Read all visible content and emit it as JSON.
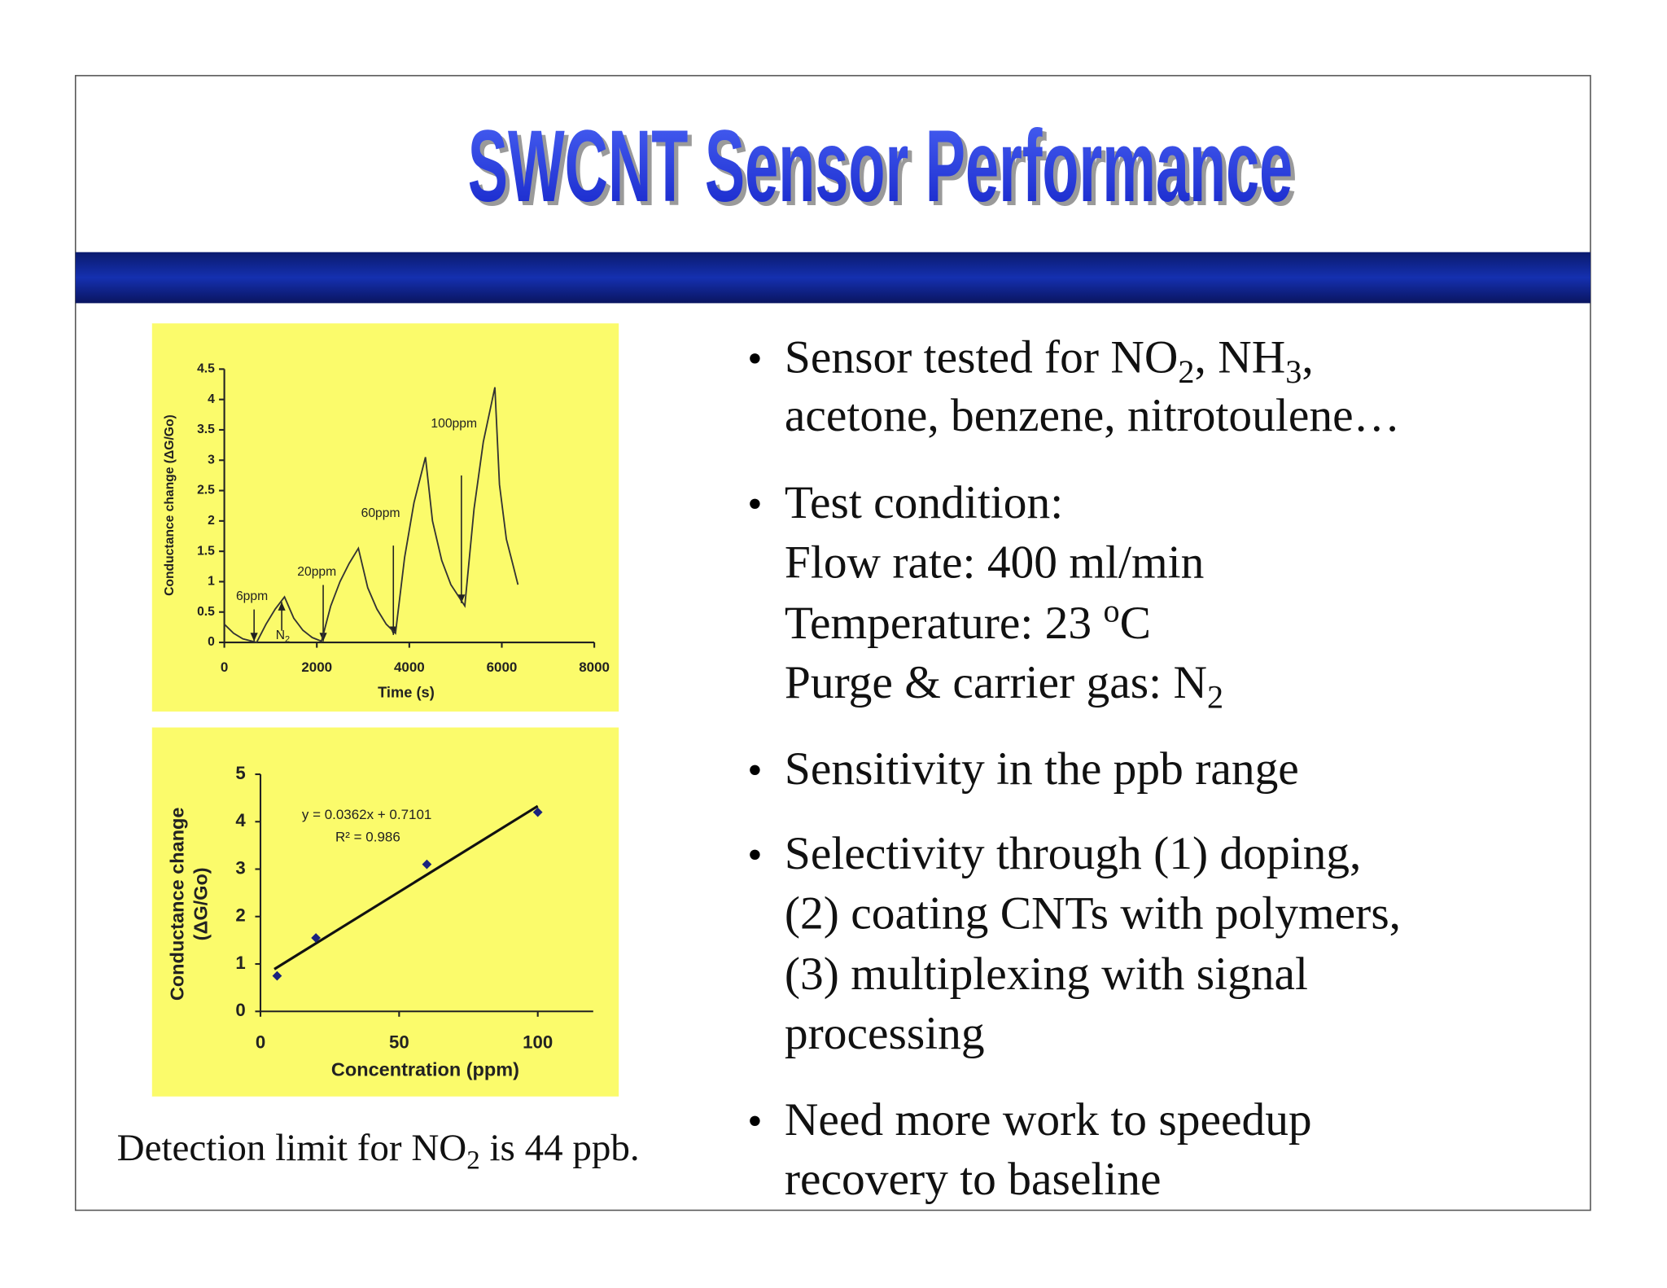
{
  "title": "SWCNT Sensor Performance",
  "bullets": [
    {
      "lines": [
        [
          "Sensor tested for NO",
          {
            "sub": "2"
          },
          ", NH",
          {
            "sub": "3"
          },
          ","
        ],
        [
          "acetone, benzene, nitrotoulene…"
        ]
      ]
    },
    {
      "lines": [
        [
          "Test condition:"
        ],
        [
          "Flow rate: 400 ml/min"
        ],
        [
          "Temperature: 23 ",
          {
            "sup": "o"
          },
          "C"
        ],
        [
          "Purge & carrier gas: N",
          {
            "sub": "2"
          }
        ]
      ]
    },
    {
      "lines": [
        [
          "Sensitivity in the ppb range"
        ]
      ]
    },
    {
      "lines": [
        [
          "Selectivity through (1) doping,"
        ],
        [
          "(2) coating CNTs with polymers,"
        ],
        [
          "(3) multiplexing with signal"
        ],
        [
          "processing"
        ]
      ]
    },
    {
      "lines": [
        [
          "Need more work to speedup"
        ],
        [
          "recovery to baseline"
        ]
      ]
    }
  ],
  "bullet_symbol": "•",
  "caption": [
    "Detection limit for NO",
    {
      "sub": "2"
    },
    " is 44 ppb."
  ],
  "chart_data": [
    {
      "type": "line",
      "x_label": "Time (s)",
      "y_label": [
        "Conductance change (ΔG/Go)"
      ],
      "color": "#333333",
      "background": "#fbfb6b",
      "x": [
        0,
        200,
        400,
        700,
        900,
        1100,
        1300,
        1500,
        1700,
        1900,
        2100,
        2300,
        2500,
        2700,
        2900,
        3100,
        3300,
        3500,
        3700,
        3900,
        4100,
        4350,
        4500,
        4700,
        4900,
        5200,
        5400,
        5600,
        5850,
        5950,
        6100,
        6250,
        6350
      ],
      "y": [
        0.3,
        0.15,
        0.06,
        0,
        0.3,
        0.55,
        0.75,
        0.4,
        0.2,
        0.08,
        0.02,
        0.6,
        1.0,
        1.3,
        1.55,
        0.9,
        0.55,
        0.3,
        0.15,
        1.4,
        2.3,
        3.05,
        2.0,
        1.35,
        0.95,
        0.6,
        2.2,
        3.3,
        4.2,
        2.6,
        1.7,
        1.25,
        0.95
      ],
      "xlim": [
        0,
        8000
      ],
      "xticks": [
        0,
        2000,
        4000,
        6000,
        8000
      ],
      "ylim": [
        0,
        4.5
      ],
      "yticks": [
        0,
        0.5,
        1,
        1.5,
        2,
        2.5,
        3,
        3.5,
        4,
        4.5
      ],
      "annotations": [
        [
          "6ppm"
        ],
        [
          "N",
          {
            "sub": "2"
          }
        ],
        [
          "20ppm"
        ],
        [
          "60ppm"
        ],
        [
          "100ppm"
        ]
      ]
    },
    {
      "type": "scatter",
      "x_label": "Concentration (ppm)",
      "y_label": [
        "Conductance change",
        "(ΔG/Go)"
      ],
      "color": "#1a237e",
      "background": "#fbfb6b",
      "x": [
        6,
        20,
        60,
        100
      ],
      "y": [
        0.75,
        1.55,
        3.1,
        4.2
      ],
      "xlim": [
        0,
        120
      ],
      "xticks": [
        0,
        50,
        100
      ],
      "ylim": [
        0,
        5
      ],
      "yticks": [
        0,
        1,
        2,
        3,
        4,
        5
      ],
      "trendline": {
        "slope": 0.0362,
        "intercept": 0.7101
      },
      "annotations": [
        [
          "y = 0.0362x + 0.7101"
        ],
        [
          "R² = 0.986"
        ]
      ]
    }
  ]
}
